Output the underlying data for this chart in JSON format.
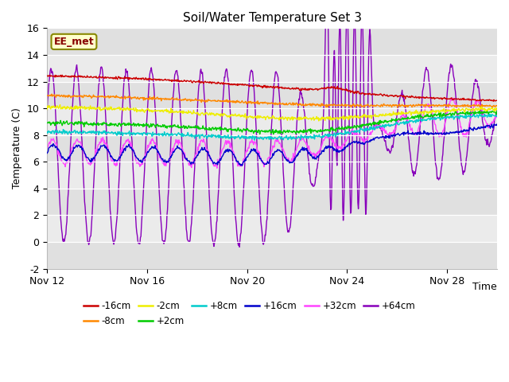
{
  "title": "Soil/Water Temperature Set 3",
  "ylabel": "Temperature (C)",
  "xlabel": "Time",
  "annotation": "EE_met",
  "ylim": [
    -2,
    16
  ],
  "yticks": [
    -2,
    0,
    2,
    4,
    6,
    8,
    10,
    12,
    14,
    16
  ],
  "xtick_positions": [
    0,
    4,
    8,
    12,
    16
  ],
  "xtick_labels": [
    "Nov 12",
    "Nov 16",
    "Nov 20",
    "Nov 24",
    "Nov 28"
  ],
  "colors": {
    "-16cm": "#cc0000",
    "-8cm": "#ff8800",
    "-2cm": "#eeee00",
    "+2cm": "#00cc00",
    "+8cm": "#00cccc",
    "+16cm": "#0000cc",
    "+32cm": "#ff44ff",
    "+64cm": "#8800bb"
  },
  "legend_labels": [
    "-16cm",
    "-8cm",
    "-2cm",
    "+2cm",
    "+8cm",
    "+16cm",
    "+32cm",
    "+64cm"
  ],
  "bg_even": "#e8e8e8",
  "bg_odd": "#d8d8d8",
  "annotation_bg": "#ffffcc",
  "annotation_border": "#888800",
  "annotation_text_color": "#880000"
}
